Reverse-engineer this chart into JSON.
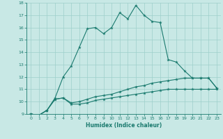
{
  "xlabel": "Humidex (Indice chaleur)",
  "x": [
    0,
    1,
    2,
    3,
    4,
    5,
    6,
    7,
    8,
    9,
    10,
    11,
    12,
    13,
    14,
    15,
    16,
    17,
    18,
    19,
    20,
    21,
    22,
    23
  ],
  "line1": [
    9.0,
    8.9,
    9.3,
    10.3,
    12.0,
    12.9,
    14.4,
    15.9,
    16.0,
    15.5,
    16.0,
    17.2,
    16.7,
    17.8,
    17.0,
    16.5,
    16.4,
    13.4,
    13.2,
    12.5,
    11.9,
    11.9,
    11.9,
    11.1
  ],
  "line2": [
    9.0,
    8.9,
    9.3,
    10.2,
    10.3,
    9.9,
    10.0,
    10.2,
    10.4,
    10.5,
    10.6,
    10.8,
    11.0,
    11.2,
    11.3,
    11.5,
    11.6,
    11.7,
    11.8,
    11.9,
    11.9,
    11.9,
    11.9,
    11.1
  ],
  "line3": [
    9.0,
    8.9,
    9.3,
    10.2,
    10.3,
    9.8,
    9.8,
    9.9,
    10.1,
    10.2,
    10.3,
    10.4,
    10.5,
    10.6,
    10.7,
    10.8,
    10.9,
    11.0,
    11.0,
    11.0,
    11.0,
    11.0,
    11.0,
    11.0
  ],
  "line_color": "#1a7a6e",
  "bg_color": "#c8e8e5",
  "grid_color": "#9dcfcb",
  "ylim": [
    9,
    18
  ],
  "xlim": [
    -0.5,
    23.5
  ],
  "yticks": [
    9,
    10,
    11,
    12,
    13,
    14,
    15,
    16,
    17,
    18
  ],
  "xticks": [
    0,
    1,
    2,
    3,
    4,
    5,
    6,
    7,
    8,
    9,
    10,
    11,
    12,
    13,
    14,
    15,
    16,
    17,
    18,
    19,
    20,
    21,
    22,
    23
  ]
}
